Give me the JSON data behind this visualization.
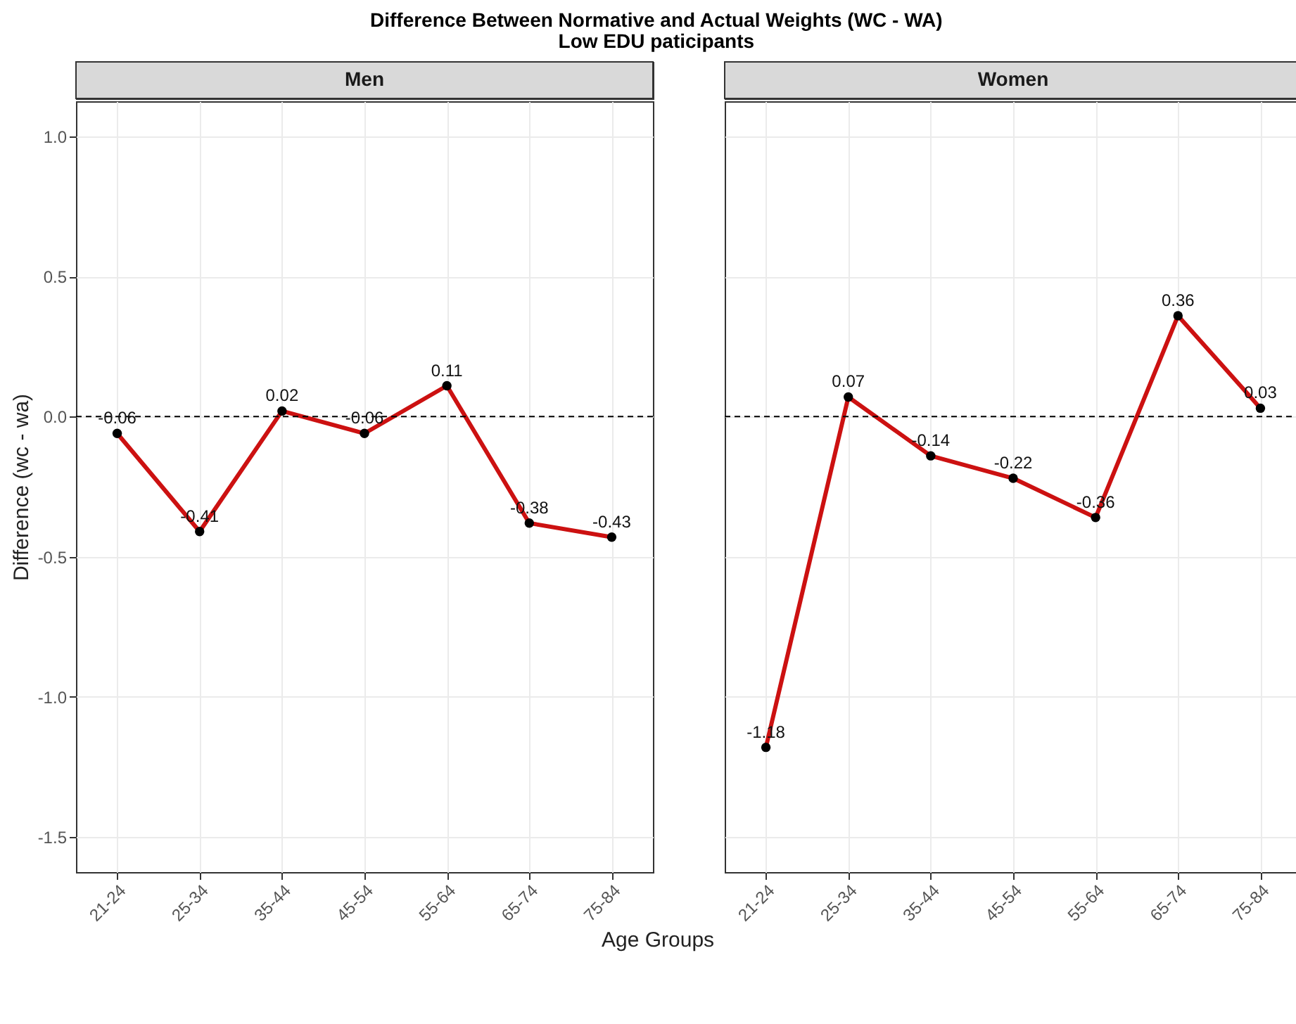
{
  "chart_data": [
    {
      "type": "line",
      "title": "Difference Between Normative and Actual Weights (WC - WA)",
      "subtitle": "Low EDU paticipants",
      "annotations": [
        "Men"
      ],
      "xlabel": "Age Groups",
      "ylabel": "Difference (wc - wa)",
      "categories": [
        "21-24",
        "25-34",
        "35-44",
        "45-54",
        "55-64",
        "65-74",
        "75-84"
      ],
      "series": [
        {
          "color": "#cc1111",
          "values": [
            -0.06,
            -0.41,
            0.02,
            -0.06,
            0.11,
            -0.38,
            -0.43
          ]
        }
      ],
      "ylim": [
        -1.625,
        1.125
      ],
      "yticks": [
        -1.5,
        {
          "value": -1,
          "label": "-1.0"
        },
        -0.5,
        {
          "value": 0,
          "label": "0.0"
        },
        0.5,
        {
          "value": 1,
          "label": "1.0"
        }
      ],
      "grid": true,
      "marker": "circle",
      "data_labels": true,
      "ref_lines": [
        {
          "axis": "y",
          "value": 0,
          "line_style": "dashed",
          "color": "#000000"
        }
      ]
    },
    {
      "type": "line",
      "annotations": [
        "Women"
      ],
      "categories": [
        "21-24",
        "25-34",
        "35-44",
        "45-54",
        "55-64",
        "65-74",
        "75-84"
      ],
      "series": [
        {
          "color": "#cc1111",
          "values": [
            -1.18,
            0.07,
            -0.14,
            -0.22,
            -0.36,
            0.36,
            0.03
          ]
        }
      ],
      "ylim": [
        -1.625,
        1.125
      ],
      "yticks": [
        -1.5,
        -1,
        -0.5,
        0,
        0.5,
        1
      ],
      "grid": true,
      "marker": "circle",
      "data_labels": true,
      "tick_labels": "x",
      "ref_lines": [
        {
          "axis": "y",
          "value": 0,
          "line_style": "dashed",
          "color": "#000000"
        }
      ]
    }
  ]
}
